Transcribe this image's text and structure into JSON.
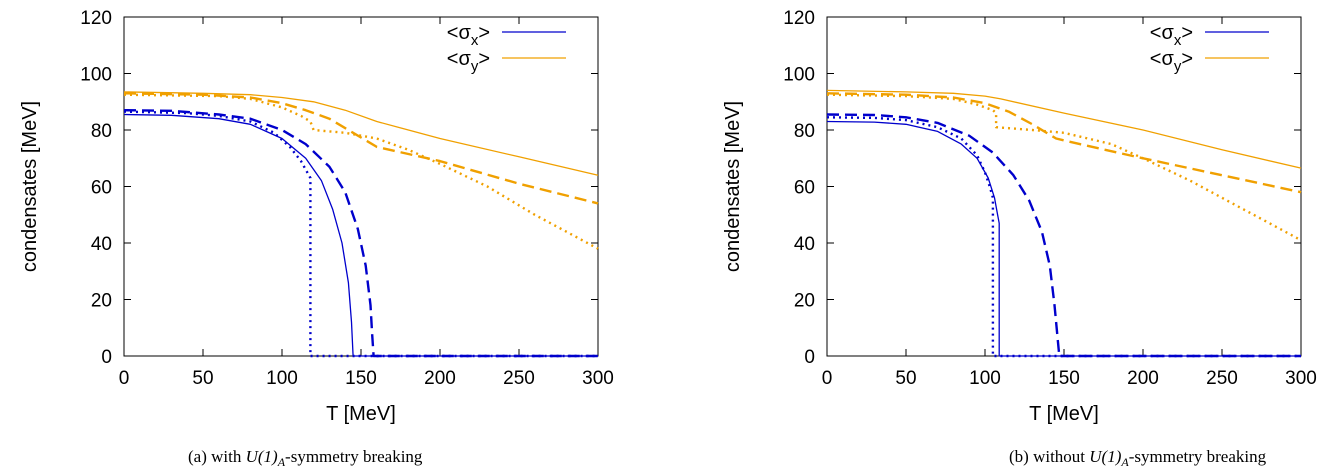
{
  "chart_data": [
    {
      "type": "line",
      "caption": {
        "prefix": "(a) with ",
        "math": "U(1)",
        "subscript": "A",
        "suffix": "-symmetry breaking"
      },
      "xlabel": "T [MeV]",
      "ylabel": "condensates [MeV]",
      "xlim": [
        0,
        300
      ],
      "ylim": [
        0,
        120
      ],
      "xticks": [
        0,
        50,
        100,
        150,
        200,
        250,
        300
      ],
      "yticks": [
        0,
        20,
        40,
        60,
        80,
        100,
        120
      ],
      "grid": false,
      "legend_position": "top-right",
      "legend": [
        {
          "label": "<σ",
          "sub": "x",
          "close": ">",
          "color": "#0000cc"
        },
        {
          "label": "<σ",
          "sub": "y",
          "close": ">",
          "color": "#f0a000"
        }
      ],
      "series": [
        {
          "quantity": "x",
          "style": "solid",
          "color": "#0000cc",
          "points": [
            [
              0,
              85.5
            ],
            [
              30,
              85.2
            ],
            [
              60,
              84
            ],
            [
              80,
              82
            ],
            [
              100,
              77
            ],
            [
              115,
              70
            ],
            [
              125,
              62
            ],
            [
              132,
              52
            ],
            [
              138,
              40
            ],
            [
              142,
              26
            ],
            [
              144,
              12
            ],
            [
              145,
              0
            ],
            [
              300,
              0
            ]
          ]
        },
        {
          "quantity": "x",
          "style": "dashed",
          "color": "#0000cc",
          "points": [
            [
              0,
              87
            ],
            [
              30,
              86.8
            ],
            [
              60,
              85.5
            ],
            [
              80,
              84
            ],
            [
              100,
              80
            ],
            [
              115,
              75
            ],
            [
              130,
              67
            ],
            [
              140,
              58
            ],
            [
              148,
              45
            ],
            [
              153,
              32
            ],
            [
              156,
              18
            ],
            [
              157,
              8
            ],
            [
              158,
              0
            ],
            [
              300,
              0
            ]
          ]
        },
        {
          "quantity": "x",
          "style": "dotted",
          "color": "#0000cc",
          "points": [
            [
              0,
              86.5
            ],
            [
              40,
              86
            ],
            [
              60,
              85
            ],
            [
              80,
              83
            ],
            [
              95,
              79
            ],
            [
              105,
              74
            ],
            [
              112,
              69
            ],
            [
              116,
              65
            ],
            [
              118,
              63
            ],
            [
              118,
              0
            ],
            [
              300,
              0
            ]
          ]
        },
        {
          "quantity": "y",
          "style": "solid",
          "color": "#f0a000",
          "points": [
            [
              0,
              93.5
            ],
            [
              50,
              93
            ],
            [
              80,
              92.5
            ],
            [
              100,
              91.5
            ],
            [
              120,
              90
            ],
            [
              140,
              87
            ],
            [
              160,
              83
            ],
            [
              200,
              77
            ],
            [
              250,
              70.5
            ],
            [
              300,
              64
            ]
          ]
        },
        {
          "quantity": "y",
          "style": "dashed",
          "color": "#f0a000",
          "points": [
            [
              0,
              93
            ],
            [
              50,
              92.5
            ],
            [
              80,
              91.5
            ],
            [
              100,
              89.5
            ],
            [
              115,
              87
            ],
            [
              130,
              84
            ],
            [
              145,
              79
            ],
            [
              160,
              74
            ],
            [
              200,
              69
            ],
            [
              250,
              61
            ],
            [
              300,
              54
            ]
          ]
        },
        {
          "quantity": "y",
          "style": "dotted",
          "color": "#f0a000",
          "points": [
            [
              0,
              92.5
            ],
            [
              60,
              92
            ],
            [
              80,
              91
            ],
            [
              100,
              88
            ],
            [
              112,
              85
            ],
            [
              118,
              83
            ],
            [
              120,
              80
            ],
            [
              140,
              79
            ],
            [
              160,
              77
            ],
            [
              180,
              73
            ],
            [
              200,
              68
            ],
            [
              230,
              60
            ],
            [
              260,
              50
            ],
            [
              280,
              44
            ],
            [
              300,
              38
            ]
          ]
        }
      ]
    },
    {
      "type": "line",
      "caption": {
        "prefix": "(b) without ",
        "math": "U(1)",
        "subscript": "A",
        "suffix": "-symmetry breaking"
      },
      "xlabel": "T [MeV]",
      "ylabel": "condensates [MeV]",
      "xlim": [
        0,
        300
      ],
      "ylim": [
        0,
        120
      ],
      "xticks": [
        0,
        50,
        100,
        150,
        200,
        250,
        300
      ],
      "yticks": [
        0,
        20,
        40,
        60,
        80,
        100,
        120
      ],
      "grid": false,
      "legend_position": "top-right",
      "legend": [
        {
          "label": "<σ",
          "sub": "x",
          "close": ">",
          "color": "#0000cc"
        },
        {
          "label": "<σ",
          "sub": "y",
          "close": ">",
          "color": "#f0a000"
        }
      ],
      "series": [
        {
          "quantity": "x",
          "style": "solid",
          "color": "#0000cc",
          "points": [
            [
              0,
              83
            ],
            [
              30,
              82.8
            ],
            [
              50,
              82
            ],
            [
              70,
              79.5
            ],
            [
              85,
              75
            ],
            [
              95,
              70
            ],
            [
              102,
              63
            ],
            [
              106,
              56
            ],
            [
              108,
              50
            ],
            [
              109,
              47
            ],
            [
              109,
              0
            ],
            [
              300,
              0
            ]
          ]
        },
        {
          "quantity": "x",
          "style": "dashed",
          "color": "#0000cc",
          "points": [
            [
              0,
              85.5
            ],
            [
              30,
              85.3
            ],
            [
              50,
              84.5
            ],
            [
              70,
              82.5
            ],
            [
              90,
              78
            ],
            [
              105,
              72
            ],
            [
              118,
              64
            ],
            [
              128,
              55
            ],
            [
              136,
              44
            ],
            [
              141,
              32
            ],
            [
              144,
              18
            ],
            [
              146,
              6
            ],
            [
              147,
              0
            ],
            [
              300,
              0
            ]
          ]
        },
        {
          "quantity": "x",
          "style": "dotted",
          "color": "#0000cc",
          "points": [
            [
              0,
              84.5
            ],
            [
              30,
              84.3
            ],
            [
              50,
              83.5
            ],
            [
              70,
              81
            ],
            [
              85,
              77
            ],
            [
              95,
              71
            ],
            [
              100,
              65
            ],
            [
              103,
              60
            ],
            [
              105,
              56
            ],
            [
              105,
              0
            ],
            [
              300,
              0
            ]
          ]
        },
        {
          "quantity": "y",
          "style": "solid",
          "color": "#f0a000",
          "points": [
            [
              0,
              94
            ],
            [
              50,
              93.5
            ],
            [
              80,
              93
            ],
            [
              100,
              92
            ],
            [
              110,
              91
            ],
            [
              150,
              86
            ],
            [
              200,
              80
            ],
            [
              250,
              73
            ],
            [
              300,
              66.5
            ]
          ]
        },
        {
          "quantity": "y",
          "style": "dashed",
          "color": "#f0a000",
          "points": [
            [
              0,
              93
            ],
            [
              50,
              92.5
            ],
            [
              80,
              91.5
            ],
            [
              100,
              89.5
            ],
            [
              115,
              86.5
            ],
            [
              130,
              82
            ],
            [
              145,
              77
            ],
            [
              160,
              75
            ],
            [
              200,
              70
            ],
            [
              250,
              64
            ],
            [
              300,
              58
            ]
          ]
        },
        {
          "quantity": "y",
          "style": "dotted",
          "color": "#f0a000",
          "points": [
            [
              0,
              92.5
            ],
            [
              50,
              92
            ],
            [
              80,
              91
            ],
            [
              95,
              89
            ],
            [
              105,
              87
            ],
            [
              107,
              86
            ],
            [
              107,
              81
            ],
            [
              130,
              80
            ],
            [
              150,
              79
            ],
            [
              180,
              75
            ],
            [
              200,
              70
            ],
            [
              230,
              62
            ],
            [
              260,
              53
            ],
            [
              280,
              47
            ],
            [
              300,
              41
            ]
          ]
        }
      ]
    }
  ]
}
